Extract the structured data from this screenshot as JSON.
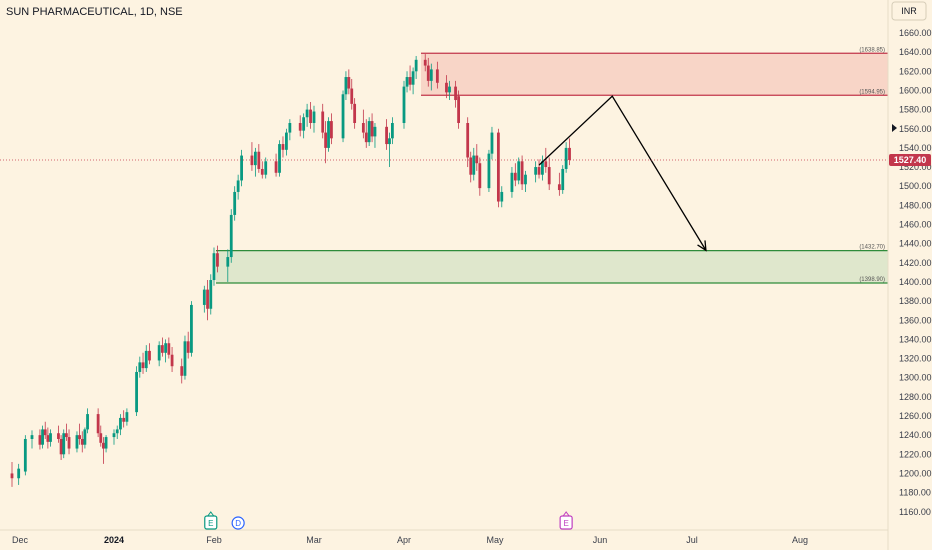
{
  "header": {
    "title": "SUN PHARMACEUTICAL, 1D, NSE",
    "currency": "INR"
  },
  "chart_data": {
    "type": "candlestick",
    "title": "SUN PHARMACEUTICAL, 1D, NSE",
    "currency": "INR",
    "ylim": [
      1150,
      1670
    ],
    "y_ticks": [
      1160,
      1180,
      1200,
      1220,
      1240,
      1260,
      1280,
      1300,
      1320,
      1340,
      1360,
      1380,
      1400,
      1420,
      1440,
      1460,
      1480,
      1500,
      1520,
      1540,
      1560,
      1580,
      1600,
      1620,
      1640,
      1660
    ],
    "x_ticks": [
      {
        "label": "Dec",
        "bold": false
      },
      {
        "label": "2024",
        "bold": true
      },
      {
        "label": "Feb",
        "bold": false
      },
      {
        "label": "Mar",
        "bold": false
      },
      {
        "label": "Apr",
        "bold": false
      },
      {
        "label": "May",
        "bold": false
      },
      {
        "label": "Jun",
        "bold": false
      },
      {
        "label": "Jul",
        "bold": false
      },
      {
        "label": "Aug",
        "bold": false
      }
    ],
    "last_price": "1527.40",
    "colors": {
      "up": "#089981",
      "down": "#c2364b",
      "background": "#fdf3e1",
      "supply": "#c2364b",
      "demand": "#2e8b3a"
    },
    "zones": [
      {
        "type": "supply",
        "top": 1638.85,
        "bottom": 1594.95,
        "top_label": "(1638.85)",
        "bottom_label": "(1594.95)"
      },
      {
        "type": "demand",
        "top": 1432.7,
        "bottom": 1398.9,
        "top_label": "(1432.70)",
        "bottom_label": "(1398.90)"
      }
    ],
    "projection": [
      {
        "date": "2024-05-14",
        "price": 1522
      },
      {
        "date": "2024-06-05",
        "price": 1594
      },
      {
        "date": "2024-07-05",
        "price": 1433
      }
    ],
    "events": [
      {
        "label": "E",
        "kind": "earnings",
        "date": "2024-01-31"
      },
      {
        "label": "D",
        "kind": "dividend",
        "date": "2024-02-08"
      },
      {
        "label": "E",
        "kind": "earnings",
        "date": "2024-05-22"
      }
    ],
    "candles": [
      {
        "date": "2023-11-28",
        "o": 1200,
        "h": 1212,
        "l": 1186,
        "c": 1195
      },
      {
        "date": "2023-11-29",
        "o": 1195,
        "h": 1210,
        "l": 1188,
        "c": 1205
      },
      {
        "date": "2023-11-30",
        "o": 1202,
        "h": 1240,
        "l": 1198,
        "c": 1236
      },
      {
        "date": "2023-12-01",
        "o": 1236,
        "h": 1245,
        "l": 1226,
        "c": 1240
      },
      {
        "date": "2023-12-04",
        "o": 1240,
        "h": 1246,
        "l": 1225,
        "c": 1230
      },
      {
        "date": "2023-12-05",
        "o": 1230,
        "h": 1250,
        "l": 1226,
        "c": 1246
      },
      {
        "date": "2023-12-06",
        "o": 1246,
        "h": 1254,
        "l": 1236,
        "c": 1240
      },
      {
        "date": "2023-12-07",
        "o": 1240,
        "h": 1248,
        "l": 1226,
        "c": 1233
      },
      {
        "date": "2023-12-08",
        "o": 1233,
        "h": 1246,
        "l": 1228,
        "c": 1242
      },
      {
        "date": "2023-12-11",
        "o": 1242,
        "h": 1250,
        "l": 1232,
        "c": 1236
      },
      {
        "date": "2023-12-12",
        "o": 1236,
        "h": 1240,
        "l": 1214,
        "c": 1220
      },
      {
        "date": "2023-12-13",
        "o": 1220,
        "h": 1246,
        "l": 1216,
        "c": 1242
      },
      {
        "date": "2023-12-14",
        "o": 1242,
        "h": 1252,
        "l": 1234,
        "c": 1238
      },
      {
        "date": "2023-12-15",
        "o": 1238,
        "h": 1246,
        "l": 1220,
        "c": 1226
      },
      {
        "date": "2023-12-18",
        "o": 1226,
        "h": 1244,
        "l": 1222,
        "c": 1240
      },
      {
        "date": "2023-12-19",
        "o": 1240,
        "h": 1252,
        "l": 1230,
        "c": 1236
      },
      {
        "date": "2023-12-20",
        "o": 1236,
        "h": 1244,
        "l": 1222,
        "c": 1230
      },
      {
        "date": "2023-12-21",
        "o": 1230,
        "h": 1248,
        "l": 1226,
        "c": 1246
      },
      {
        "date": "2023-12-22",
        "o": 1246,
        "h": 1268,
        "l": 1242,
        "c": 1262
      },
      {
        "date": "2023-12-26",
        "o": 1262,
        "h": 1268,
        "l": 1238,
        "c": 1242
      },
      {
        "date": "2023-12-27",
        "o": 1242,
        "h": 1250,
        "l": 1228,
        "c": 1232
      },
      {
        "date": "2023-12-28",
        "o": 1232,
        "h": 1238,
        "l": 1210,
        "c": 1226
      },
      {
        "date": "2023-12-29",
        "o": 1226,
        "h": 1240,
        "l": 1222,
        "c": 1238
      },
      {
        "date": "2024-01-01",
        "o": 1238,
        "h": 1246,
        "l": 1230,
        "c": 1242
      },
      {
        "date": "2024-01-02",
        "o": 1242,
        "h": 1250,
        "l": 1236,
        "c": 1246
      },
      {
        "date": "2024-01-03",
        "o": 1246,
        "h": 1262,
        "l": 1240,
        "c": 1258
      },
      {
        "date": "2024-01-04",
        "o": 1258,
        "h": 1266,
        "l": 1248,
        "c": 1254
      },
      {
        "date": "2024-01-05",
        "o": 1254,
        "h": 1268,
        "l": 1250,
        "c": 1264
      },
      {
        "date": "2024-01-08",
        "o": 1264,
        "h": 1312,
        "l": 1260,
        "c": 1306
      },
      {
        "date": "2024-01-09",
        "o": 1306,
        "h": 1322,
        "l": 1300,
        "c": 1316
      },
      {
        "date": "2024-01-10",
        "o": 1316,
        "h": 1326,
        "l": 1304,
        "c": 1310
      },
      {
        "date": "2024-01-11",
        "o": 1310,
        "h": 1334,
        "l": 1306,
        "c": 1328
      },
      {
        "date": "2024-01-12",
        "o": 1328,
        "h": 1336,
        "l": 1314,
        "c": 1318
      },
      {
        "date": "2024-01-15",
        "o": 1318,
        "h": 1338,
        "l": 1312,
        "c": 1334
      },
      {
        "date": "2024-01-16",
        "o": 1334,
        "h": 1342,
        "l": 1322,
        "c": 1326
      },
      {
        "date": "2024-01-17",
        "o": 1326,
        "h": 1340,
        "l": 1316,
        "c": 1336
      },
      {
        "date": "2024-01-18",
        "o": 1336,
        "h": 1342,
        "l": 1320,
        "c": 1324
      },
      {
        "date": "2024-01-19",
        "o": 1324,
        "h": 1332,
        "l": 1306,
        "c": 1312
      },
      {
        "date": "2024-01-22",
        "o": 1312,
        "h": 1320,
        "l": 1294,
        "c": 1302
      },
      {
        "date": "2024-01-23",
        "o": 1302,
        "h": 1344,
        "l": 1298,
        "c": 1338
      },
      {
        "date": "2024-01-24",
        "o": 1338,
        "h": 1348,
        "l": 1320,
        "c": 1326
      },
      {
        "date": "2024-01-25",
        "o": 1326,
        "h": 1380,
        "l": 1322,
        "c": 1376
      },
      {
        "date": "2024-01-29",
        "o": 1376,
        "h": 1396,
        "l": 1368,
        "c": 1392
      },
      {
        "date": "2024-01-30",
        "o": 1392,
        "h": 1402,
        "l": 1360,
        "c": 1372
      },
      {
        "date": "2024-01-31",
        "o": 1372,
        "h": 1408,
        "l": 1366,
        "c": 1402
      },
      {
        "date": "2024-02-01",
        "o": 1402,
        "h": 1436,
        "l": 1396,
        "c": 1430
      },
      {
        "date": "2024-02-02",
        "o": 1430,
        "h": 1438,
        "l": 1410,
        "c": 1416
      },
      {
        "date": "2024-02-05",
        "o": 1416,
        "h": 1434,
        "l": 1400,
        "c": 1426
      },
      {
        "date": "2024-02-06",
        "o": 1426,
        "h": 1476,
        "l": 1420,
        "c": 1470
      },
      {
        "date": "2024-02-07",
        "o": 1470,
        "h": 1500,
        "l": 1464,
        "c": 1494
      },
      {
        "date": "2024-02-08",
        "o": 1494,
        "h": 1512,
        "l": 1486,
        "c": 1506
      },
      {
        "date": "2024-02-09",
        "o": 1506,
        "h": 1538,
        "l": 1500,
        "c": 1532
      },
      {
        "date": "2024-02-12",
        "o": 1532,
        "h": 1546,
        "l": 1516,
        "c": 1522
      },
      {
        "date": "2024-02-13",
        "o": 1522,
        "h": 1540,
        "l": 1510,
        "c": 1536
      },
      {
        "date": "2024-02-14",
        "o": 1536,
        "h": 1544,
        "l": 1514,
        "c": 1518
      },
      {
        "date": "2024-02-15",
        "o": 1518,
        "h": 1526,
        "l": 1508,
        "c": 1512
      },
      {
        "date": "2024-02-16",
        "o": 1512,
        "h": 1530,
        "l": 1508,
        "c": 1526
      },
      {
        "date": "2024-02-19",
        "o": 1526,
        "h": 1534,
        "l": 1510,
        "c": 1514
      },
      {
        "date": "2024-02-20",
        "o": 1514,
        "h": 1548,
        "l": 1510,
        "c": 1544
      },
      {
        "date": "2024-02-21",
        "o": 1544,
        "h": 1552,
        "l": 1530,
        "c": 1538
      },
      {
        "date": "2024-02-22",
        "o": 1538,
        "h": 1560,
        "l": 1532,
        "c": 1556
      },
      {
        "date": "2024-02-23",
        "o": 1556,
        "h": 1570,
        "l": 1548,
        "c": 1566
      },
      {
        "date": "2024-02-26",
        "o": 1566,
        "h": 1574,
        "l": 1552,
        "c": 1558
      },
      {
        "date": "2024-02-27",
        "o": 1558,
        "h": 1576,
        "l": 1550,
        "c": 1572
      },
      {
        "date": "2024-02-28",
        "o": 1572,
        "h": 1586,
        "l": 1562,
        "c": 1580
      },
      {
        "date": "2024-02-29",
        "o": 1580,
        "h": 1588,
        "l": 1560,
        "c": 1566
      },
      {
        "date": "2024-03-01",
        "o": 1566,
        "h": 1584,
        "l": 1556,
        "c": 1578
      },
      {
        "date": "2024-03-04",
        "o": 1578,
        "h": 1586,
        "l": 1550,
        "c": 1556
      },
      {
        "date": "2024-03-05",
        "o": 1556,
        "h": 1568,
        "l": 1524,
        "c": 1540
      },
      {
        "date": "2024-03-06",
        "o": 1540,
        "h": 1572,
        "l": 1536,
        "c": 1568
      },
      {
        "date": "2024-03-07",
        "o": 1568,
        "h": 1576,
        "l": 1544,
        "c": 1550
      },
      {
        "date": "2024-03-11",
        "o": 1550,
        "h": 1600,
        "l": 1546,
        "c": 1596
      },
      {
        "date": "2024-03-12",
        "o": 1596,
        "h": 1620,
        "l": 1590,
        "c": 1614
      },
      {
        "date": "2024-03-13",
        "o": 1614,
        "h": 1622,
        "l": 1596,
        "c": 1602
      },
      {
        "date": "2024-03-14",
        "o": 1602,
        "h": 1612,
        "l": 1580,
        "c": 1586
      },
      {
        "date": "2024-03-15",
        "o": 1586,
        "h": 1592,
        "l": 1560,
        "c": 1566
      },
      {
        "date": "2024-03-18",
        "o": 1566,
        "h": 1580,
        "l": 1550,
        "c": 1556
      },
      {
        "date": "2024-03-19",
        "o": 1556,
        "h": 1570,
        "l": 1540,
        "c": 1546
      },
      {
        "date": "2024-03-20",
        "o": 1546,
        "h": 1572,
        "l": 1542,
        "c": 1568
      },
      {
        "date": "2024-03-21",
        "o": 1568,
        "h": 1576,
        "l": 1546,
        "c": 1552
      },
      {
        "date": "2024-03-22",
        "o": 1552,
        "h": 1566,
        "l": 1540,
        "c": 1562
      },
      {
        "date": "2024-03-26",
        "o": 1562,
        "h": 1570,
        "l": 1538,
        "c": 1544
      },
      {
        "date": "2024-03-27",
        "o": 1544,
        "h": 1556,
        "l": 1520,
        "c": 1550
      },
      {
        "date": "2024-03-28",
        "o": 1550,
        "h": 1572,
        "l": 1544,
        "c": 1566
      },
      {
        "date": "2024-04-01",
        "o": 1566,
        "h": 1610,
        "l": 1560,
        "c": 1604
      },
      {
        "date": "2024-04-02",
        "o": 1604,
        "h": 1620,
        "l": 1598,
        "c": 1614
      },
      {
        "date": "2024-04-03",
        "o": 1614,
        "h": 1626,
        "l": 1600,
        "c": 1606
      },
      {
        "date": "2024-04-04",
        "o": 1606,
        "h": 1624,
        "l": 1596,
        "c": 1620
      },
      {
        "date": "2024-04-05",
        "o": 1620,
        "h": 1636,
        "l": 1612,
        "c": 1632
      },
      {
        "date": "2024-04-08",
        "o": 1632,
        "h": 1638,
        "l": 1620,
        "c": 1626
      },
      {
        "date": "2024-04-09",
        "o": 1626,
        "h": 1634,
        "l": 1604,
        "c": 1610
      },
      {
        "date": "2024-04-10",
        "o": 1610,
        "h": 1628,
        "l": 1600,
        "c": 1622
      },
      {
        "date": "2024-04-12",
        "o": 1622,
        "h": 1630,
        "l": 1602,
        "c": 1608
      },
      {
        "date": "2024-04-15",
        "o": 1608,
        "h": 1616,
        "l": 1592,
        "c": 1598
      },
      {
        "date": "2024-04-16",
        "o": 1598,
        "h": 1610,
        "l": 1590,
        "c": 1604
      },
      {
        "date": "2024-04-18",
        "o": 1604,
        "h": 1610,
        "l": 1582,
        "c": 1590
      },
      {
        "date": "2024-04-19",
        "o": 1594,
        "h": 1600,
        "l": 1560,
        "c": 1566
      },
      {
        "date": "2024-04-22",
        "o": 1566,
        "h": 1572,
        "l": 1520,
        "c": 1530
      },
      {
        "date": "2024-04-23",
        "o": 1530,
        "h": 1536,
        "l": 1504,
        "c": 1512
      },
      {
        "date": "2024-04-24",
        "o": 1512,
        "h": 1540,
        "l": 1506,
        "c": 1532
      },
      {
        "date": "2024-04-25",
        "o": 1532,
        "h": 1544,
        "l": 1516,
        "c": 1524
      },
      {
        "date": "2024-04-26",
        "o": 1524,
        "h": 1530,
        "l": 1490,
        "c": 1498
      },
      {
        "date": "2024-04-29",
        "o": 1498,
        "h": 1538,
        "l": 1494,
        "c": 1534
      },
      {
        "date": "2024-04-30",
        "o": 1534,
        "h": 1562,
        "l": 1528,
        "c": 1556
      },
      {
        "date": "2024-05-02",
        "o": 1556,
        "h": 1560,
        "l": 1478,
        "c": 1484
      },
      {
        "date": "2024-05-03",
        "o": 1484,
        "h": 1500,
        "l": 1478,
        "c": 1494
      },
      {
        "date": "2024-05-06",
        "o": 1494,
        "h": 1520,
        "l": 1488,
        "c": 1514
      },
      {
        "date": "2024-05-07",
        "o": 1514,
        "h": 1524,
        "l": 1500,
        "c": 1506
      },
      {
        "date": "2024-05-08",
        "o": 1506,
        "h": 1530,
        "l": 1502,
        "c": 1526
      },
      {
        "date": "2024-05-09",
        "o": 1526,
        "h": 1532,
        "l": 1496,
        "c": 1502
      },
      {
        "date": "2024-05-10",
        "o": 1502,
        "h": 1516,
        "l": 1494,
        "c": 1512
      },
      {
        "date": "2024-05-13",
        "o": 1512,
        "h": 1526,
        "l": 1504,
        "c": 1520
      },
      {
        "date": "2024-05-14",
        "o": 1520,
        "h": 1528,
        "l": 1508,
        "c": 1512
      },
      {
        "date": "2024-05-15",
        "o": 1512,
        "h": 1532,
        "l": 1506,
        "c": 1526
      },
      {
        "date": "2024-05-16",
        "o": 1526,
        "h": 1540,
        "l": 1514,
        "c": 1520
      },
      {
        "date": "2024-05-17",
        "o": 1520,
        "h": 1530,
        "l": 1496,
        "c": 1502
      },
      {
        "date": "2024-05-20",
        "o": 1502,
        "h": 1514,
        "l": 1490,
        "c": 1496
      },
      {
        "date": "2024-05-21",
        "o": 1496,
        "h": 1522,
        "l": 1492,
        "c": 1518
      },
      {
        "date": "2024-05-22",
        "o": 1518,
        "h": 1546,
        "l": 1514,
        "c": 1540
      },
      {
        "date": "2024-05-23",
        "o": 1540,
        "h": 1550,
        "l": 1522,
        "c": 1527.4
      }
    ]
  }
}
